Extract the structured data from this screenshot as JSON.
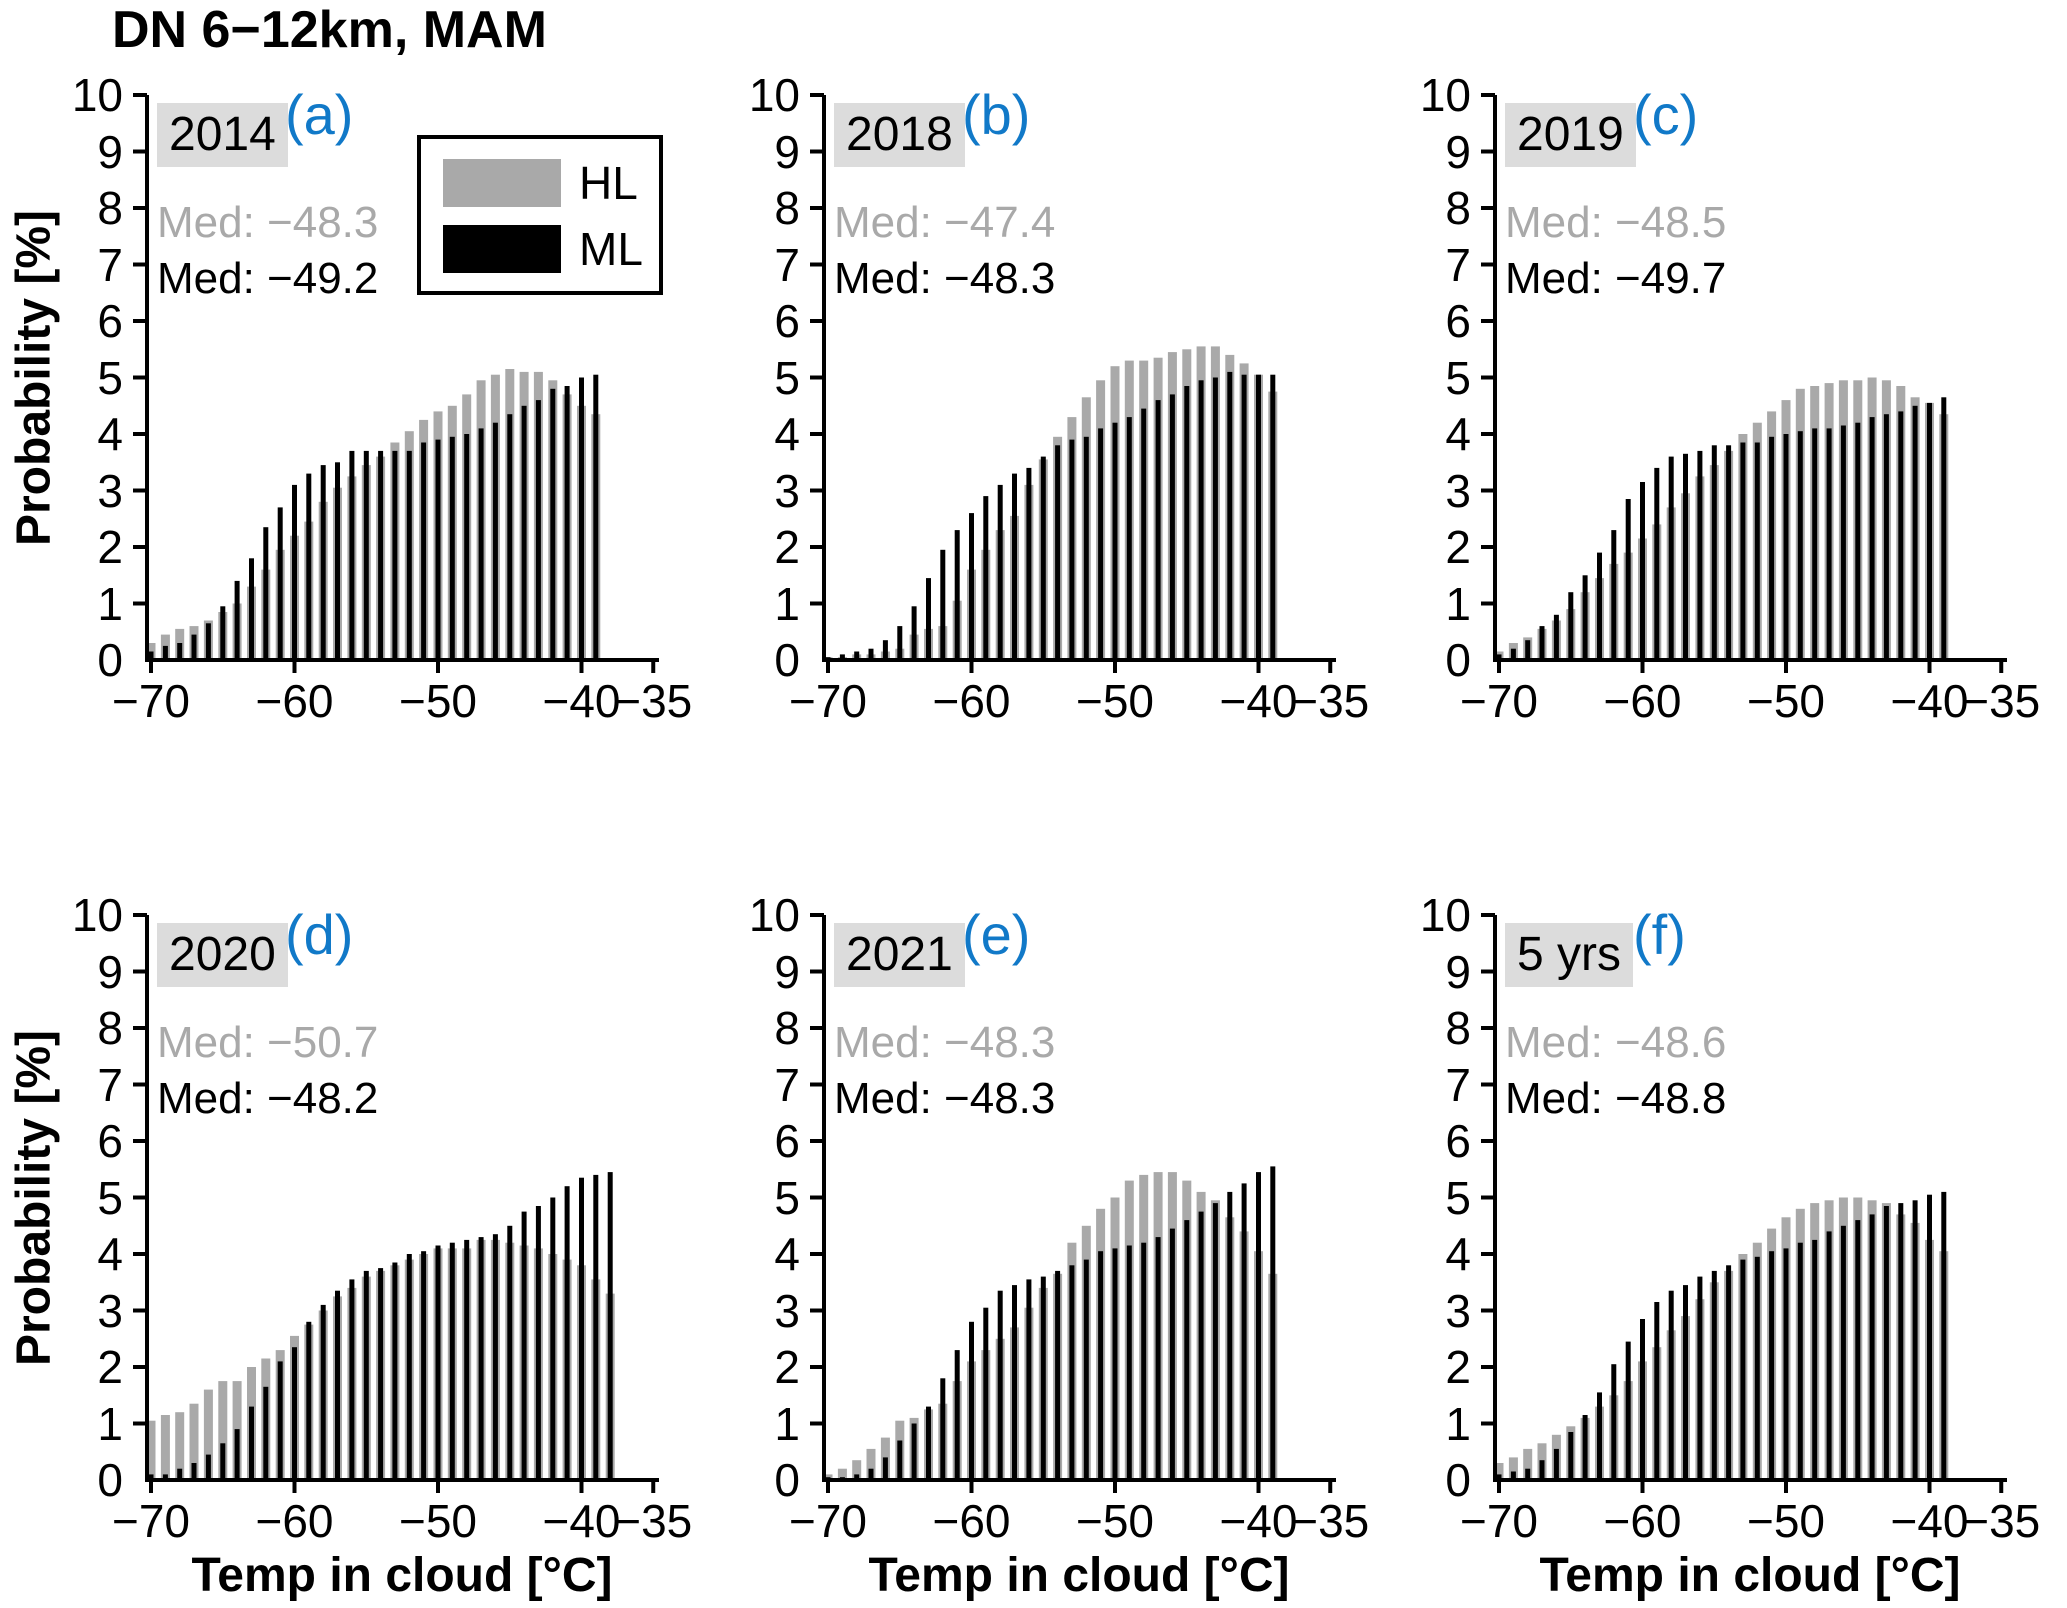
{
  "title": "DN 6−12km, MAM",
  "ylabel": "Probability [%]",
  "xlabel": "Temp in cloud [°C]",
  "colors": {
    "hl": "#a9a9a9",
    "ml": "#000000",
    "panel_letter": "#1179c8",
    "year_background": "#dcdcdc",
    "axis": "#000000",
    "background": "#ffffff"
  },
  "legend": {
    "position": "upper right of panel a",
    "items": [
      {
        "label": "HL",
        "color": "#a9a9a9"
      },
      {
        "label": "ML",
        "color": "#000000"
      }
    ]
  },
  "axes": {
    "ylim": [
      0,
      10
    ],
    "ytick_labels": [
      "0",
      "1",
      "2",
      "3",
      "4",
      "5",
      "6",
      "7",
      "8",
      "9",
      "10"
    ],
    "xlim": [
      -70.5,
      -34.5
    ],
    "xticks": [
      -70,
      -60,
      -50,
      -40,
      -35
    ],
    "xtick_labels": [
      "−70",
      "−60",
      "−50",
      "−40",
      "−35"
    ]
  },
  "chart_data": [
    {
      "type": "bar",
      "panel_letter": "(a)",
      "year": "2014",
      "med_hl": "Med: −48.3",
      "med_ml": "Med: −49.2",
      "bin_start": -70,
      "bin_step": 1,
      "series": [
        {
          "name": "HL",
          "values": [
            0.3,
            0.45,
            0.55,
            0.6,
            0.7,
            0.85,
            1.0,
            1.3,
            1.6,
            1.95,
            2.2,
            2.45,
            2.8,
            3.05,
            3.25,
            3.45,
            3.6,
            3.85,
            4.05,
            4.25,
            4.4,
            4.5,
            4.7,
            4.95,
            5.05,
            5.15,
            5.1,
            5.1,
            4.95,
            4.7,
            4.5,
            4.35
          ]
        },
        {
          "name": "ML",
          "values": [
            0.15,
            0.25,
            0.3,
            0.45,
            0.65,
            0.95,
            1.4,
            1.8,
            2.35,
            2.7,
            3.1,
            3.3,
            3.45,
            3.5,
            3.7,
            3.7,
            3.7,
            3.7,
            3.7,
            3.85,
            3.9,
            3.95,
            4.0,
            4.1,
            4.2,
            4.35,
            4.5,
            4.6,
            4.8,
            4.85,
            5.0,
            5.05
          ]
        }
      ]
    },
    {
      "type": "bar",
      "panel_letter": "(b)",
      "year": "2018",
      "med_hl": "Med: −47.4",
      "med_ml": "Med: −48.3",
      "bin_start": -70,
      "bin_step": 1,
      "series": [
        {
          "name": "HL",
          "values": [
            0.05,
            0.05,
            0.1,
            0.1,
            0.15,
            0.2,
            0.45,
            0.55,
            0.6,
            1.05,
            1.6,
            1.95,
            2.3,
            2.55,
            3.1,
            3.55,
            3.95,
            4.3,
            4.65,
            4.95,
            5.2,
            5.3,
            5.3,
            5.35,
            5.45,
            5.5,
            5.55,
            5.55,
            5.4,
            5.25,
            5.05,
            4.75
          ]
        },
        {
          "name": "ML",
          "values": [
            0.05,
            0.1,
            0.15,
            0.2,
            0.35,
            0.6,
            0.95,
            1.45,
            1.95,
            2.3,
            2.6,
            2.9,
            3.1,
            3.3,
            3.4,
            3.6,
            3.8,
            3.9,
            3.95,
            4.1,
            4.2,
            4.3,
            4.45,
            4.6,
            4.7,
            4.85,
            4.95,
            5.0,
            5.1,
            5.05,
            5.05,
            5.05
          ]
        }
      ]
    },
    {
      "type": "bar",
      "panel_letter": "(c)",
      "year": "2019",
      "med_hl": "Med: −48.5",
      "med_ml": "Med: −49.7",
      "bin_start": -70,
      "bin_step": 1,
      "series": [
        {
          "name": "HL",
          "values": [
            0.15,
            0.3,
            0.4,
            0.55,
            0.7,
            0.9,
            1.2,
            1.45,
            1.7,
            1.9,
            2.15,
            2.4,
            2.7,
            2.95,
            3.25,
            3.45,
            3.7,
            4.0,
            4.2,
            4.4,
            4.6,
            4.8,
            4.85,
            4.9,
            4.95,
            4.95,
            5.0,
            4.95,
            4.85,
            4.65,
            4.55,
            4.35
          ]
        },
        {
          "name": "ML",
          "values": [
            0.1,
            0.2,
            0.35,
            0.6,
            0.8,
            1.2,
            1.5,
            1.9,
            2.3,
            2.85,
            3.15,
            3.4,
            3.6,
            3.65,
            3.7,
            3.8,
            3.8,
            3.85,
            3.85,
            3.95,
            4.0,
            4.05,
            4.1,
            4.1,
            4.15,
            4.2,
            4.3,
            4.35,
            4.4,
            4.5,
            4.55,
            4.65
          ]
        }
      ]
    },
    {
      "type": "bar",
      "panel_letter": "(d)",
      "year": "2020",
      "med_hl": "Med: −50.7",
      "med_ml": "Med: −48.2",
      "bin_start": -70,
      "bin_step": 1,
      "series": [
        {
          "name": "HL",
          "values": [
            1.05,
            1.15,
            1.2,
            1.35,
            1.6,
            1.75,
            1.75,
            2.0,
            2.15,
            2.3,
            2.55,
            2.75,
            3.0,
            3.25,
            3.4,
            3.6,
            3.7,
            3.8,
            3.9,
            4.0,
            4.1,
            4.1,
            4.1,
            4.25,
            4.25,
            4.2,
            4.15,
            4.1,
            4.0,
            3.9,
            3.8,
            3.55,
            3.3
          ]
        },
        {
          "name": "ML",
          "values": [
            0.1,
            0.1,
            0.2,
            0.3,
            0.45,
            0.65,
            0.9,
            1.3,
            1.65,
            2.1,
            2.35,
            2.8,
            3.1,
            3.35,
            3.55,
            3.7,
            3.75,
            3.85,
            4.0,
            4.05,
            4.15,
            4.2,
            4.25,
            4.3,
            4.35,
            4.5,
            4.75,
            4.85,
            5.0,
            5.2,
            5.35,
            5.4,
            5.45
          ]
        }
      ]
    },
    {
      "type": "bar",
      "panel_letter": "(e)",
      "year": "2021",
      "med_hl": "Med: −48.3",
      "med_ml": "Med: −48.3",
      "bin_start": -70,
      "bin_step": 1,
      "series": [
        {
          "name": "HL",
          "values": [
            0.1,
            0.2,
            0.35,
            0.55,
            0.75,
            1.05,
            1.1,
            1.25,
            1.35,
            1.75,
            2.1,
            2.3,
            2.5,
            2.7,
            3.05,
            3.4,
            3.65,
            4.2,
            4.5,
            4.8,
            5.0,
            5.3,
            5.4,
            5.45,
            5.45,
            5.3,
            5.1,
            4.95,
            4.65,
            4.4,
            4.05,
            3.65
          ]
        },
        {
          "name": "ML",
          "values": [
            0.05,
            0.05,
            0.1,
            0.2,
            0.4,
            0.7,
            1.0,
            1.3,
            1.8,
            2.3,
            2.8,
            3.05,
            3.35,
            3.45,
            3.55,
            3.6,
            3.7,
            3.8,
            3.9,
            4.05,
            4.1,
            4.15,
            4.2,
            4.3,
            4.45,
            4.6,
            4.75,
            4.9,
            5.1,
            5.25,
            5.45,
            5.55
          ]
        }
      ]
    },
    {
      "type": "bar",
      "panel_letter": "(f)",
      "year": "5 yrs",
      "med_hl": "Med: −48.6",
      "med_ml": "Med: −48.8",
      "bin_start": -70,
      "bin_step": 1,
      "series": [
        {
          "name": "HL",
          "values": [
            0.3,
            0.4,
            0.55,
            0.65,
            0.8,
            0.95,
            1.1,
            1.3,
            1.5,
            1.75,
            2.1,
            2.35,
            2.65,
            2.9,
            3.2,
            3.5,
            3.7,
            4.0,
            4.2,
            4.45,
            4.65,
            4.8,
            4.9,
            4.95,
            5.0,
            5.0,
            4.95,
            4.9,
            4.7,
            4.55,
            4.25,
            4.05
          ]
        },
        {
          "name": "ML",
          "values": [
            0.1,
            0.15,
            0.2,
            0.35,
            0.55,
            0.85,
            1.15,
            1.55,
            2.05,
            2.45,
            2.85,
            3.15,
            3.35,
            3.45,
            3.6,
            3.7,
            3.8,
            3.9,
            3.95,
            4.05,
            4.1,
            4.2,
            4.25,
            4.4,
            4.5,
            4.6,
            4.7,
            4.85,
            4.9,
            4.95,
            5.05,
            5.1
          ]
        }
      ]
    }
  ]
}
